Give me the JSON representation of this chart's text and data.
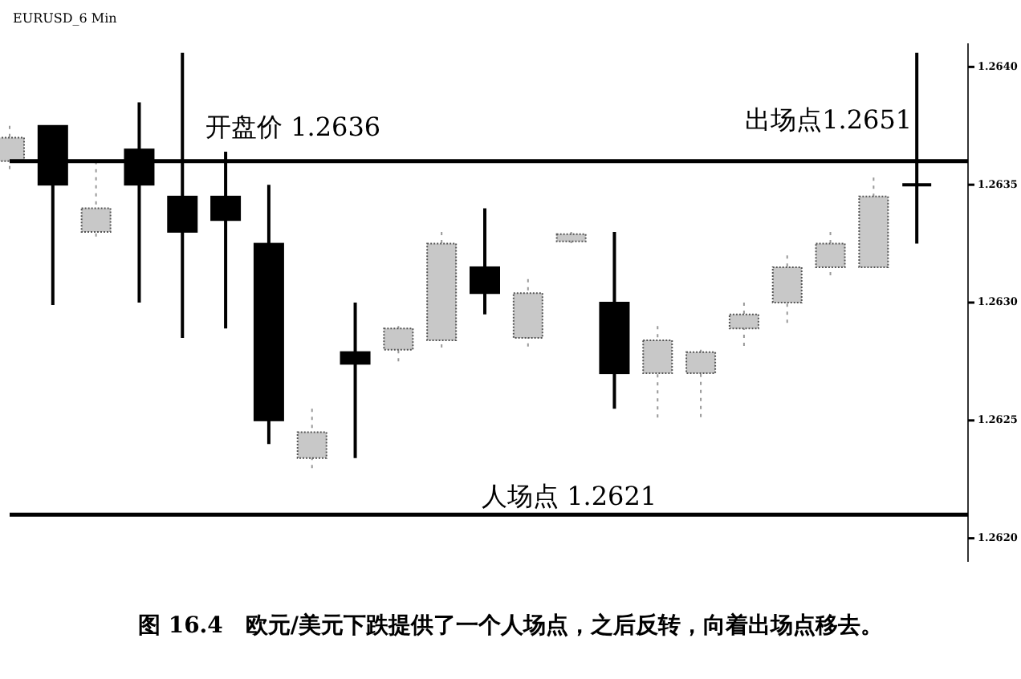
{
  "chart_data": {
    "type": "candlestick",
    "title": "EURUSD_6 Min",
    "categories": [
      null,
      null,
      null,
      null,
      null,
      null,
      null,
      null,
      null,
      null,
      null,
      null,
      null,
      null,
      null,
      null,
      null,
      null,
      null,
      null,
      null,
      null
    ],
    "ohlc": [
      [
        1.2636,
        1.26375,
        1.26355,
        1.2637
      ],
      [
        1.26375,
        1.26375,
        1.26299,
        1.2635
      ],
      [
        1.2633,
        1.2636,
        1.26326,
        1.2634
      ],
      [
        1.26365,
        1.26385,
        1.263,
        1.2635
      ],
      [
        1.26345,
        1.26406,
        1.26285,
        1.2633
      ],
      [
        1.26345,
        1.26364,
        1.26289,
        1.26335
      ],
      [
        1.26325,
        1.2635,
        1.2624,
        1.2625
      ],
      [
        1.26234,
        1.26255,
        1.26228,
        1.26245
      ],
      [
        1.26279,
        1.263,
        1.26234,
        1.26274
      ],
      [
        1.2628,
        1.2629,
        1.26275,
        1.26289
      ],
      [
        1.26284,
        1.2633,
        1.2628,
        1.26325
      ],
      [
        1.26315,
        1.2634,
        1.26295,
        1.26304
      ],
      [
        1.26285,
        1.2631,
        1.2628,
        1.26304
      ],
      [
        1.26326,
        1.2633,
        1.26325,
        1.26329
      ],
      [
        1.263,
        1.2633,
        1.26255,
        1.2627
      ],
      [
        1.2627,
        1.2629,
        1.2625,
        1.26284
      ],
      [
        1.2627,
        1.2628,
        1.2625,
        1.26279
      ],
      [
        1.26289,
        1.263,
        1.2628,
        1.26295
      ],
      [
        1.263,
        1.2632,
        1.2629,
        1.26315
      ],
      [
        1.26315,
        1.2633,
        1.2631,
        1.26325
      ],
      [
        1.26315,
        1.26353,
        1.26315,
        1.26345
      ],
      [
        1.2635,
        1.26406,
        1.26325,
        1.2635
      ]
    ],
    "colors": [
      "#c8c8c8",
      "#000000",
      "#c8c8c8",
      "#000000",
      "#000000",
      "#000000",
      "#000000",
      "#c8c8c8",
      "#000000",
      "#c8c8c8",
      "#c8c8c8",
      "#000000",
      "#c8c8c8",
      "#c8c8c8",
      "#000000",
      "#c8c8c8",
      "#c8c8c8",
      "#c8c8c8",
      "#c8c8c8",
      "#c8c8c8",
      "#c8c8c8",
      "#000000"
    ],
    "ylim": [
      1.2619,
      1.2641
    ],
    "yticks": [
      {
        "value": 1.262,
        "label": "1.2620"
      },
      {
        "value": 1.2625,
        "label": "1.2625"
      },
      {
        "value": 1.263,
        "label": "1.2630"
      },
      {
        "value": 1.2635,
        "label": "1.2635"
      },
      {
        "value": 1.264,
        "label": "1.2640"
      }
    ],
    "ref_lines": [
      {
        "axis": "y",
        "value": 1.2636,
        "label": "开盘价 1.2636",
        "color": "#000000"
      },
      {
        "axis": "y",
        "value": 1.2621,
        "label": "人场点 1.2621",
        "color": "#000000"
      }
    ],
    "annotations": [
      "出场点1.2651",
      "图 16.4　欧元/美元下跌提供了一个人场点，之后反转，向着出场点移去。"
    ]
  }
}
